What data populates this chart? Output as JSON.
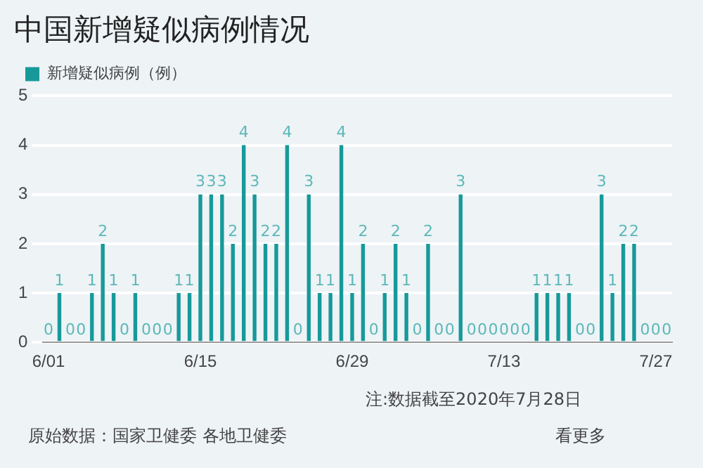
{
  "chart_data": {
    "type": "bar",
    "title": "中国新增疑似病例情况",
    "categories": [
      "6/01",
      null,
      null,
      null,
      null,
      null,
      null,
      null,
      null,
      null,
      null,
      null,
      null,
      null,
      "6/15",
      null,
      null,
      null,
      null,
      null,
      null,
      null,
      null,
      null,
      null,
      null,
      null,
      null,
      "6/29",
      null,
      null,
      null,
      null,
      null,
      null,
      null,
      null,
      null,
      null,
      null,
      null,
      null,
      "7/13",
      null,
      null,
      null,
      null,
      null,
      null,
      null,
      null,
      null,
      null,
      null,
      null,
      null,
      "7/27",
      null
    ],
    "series": [
      {
        "name": "新增疑似病例（例）",
        "color": "#17999a",
        "values": [
          0,
          1,
          0,
          0,
          1,
          2,
          1,
          0,
          1,
          0,
          0,
          0,
          1,
          1,
          3,
          3,
          3,
          2,
          4,
          3,
          2,
          2,
          4,
          0,
          3,
          1,
          1,
          4,
          1,
          2,
          0,
          1,
          2,
          1,
          0,
          2,
          0,
          0,
          3,
          0,
          0,
          0,
          0,
          0,
          0,
          1,
          1,
          1,
          1,
          0,
          0,
          3,
          1,
          2,
          2,
          0,
          0,
          0
        ]
      }
    ],
    "ylim": [
      0,
      5
    ],
    "yticks": [
      0,
      1,
      2,
      3,
      4,
      5
    ],
    "grid": "y",
    "legend": "top left",
    "data_labels": true,
    "annotations": [
      "注:数据截至2020年7月28日",
      "原始数据：国家卫健委 各地卫健委",
      "看更多"
    ]
  }
}
